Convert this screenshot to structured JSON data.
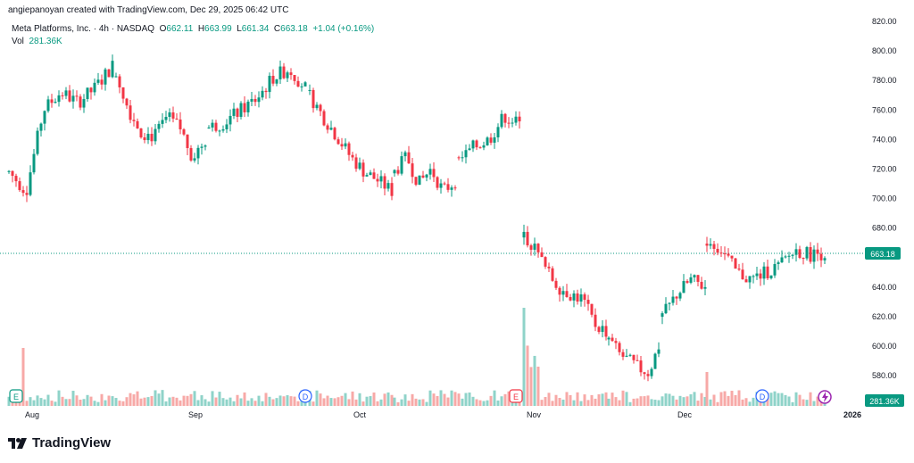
{
  "header": {
    "credit": "angiepanoyan created with TradingView.com, Dec 29, 2025 06:42 UTC"
  },
  "symbol": {
    "name": "Meta Platforms, Inc.",
    "interval": "4h",
    "exchange": "NASDAQ",
    "open_label": "O",
    "open": "662.11",
    "high_label": "H",
    "high": "663.99",
    "low_label": "L",
    "low": "661.34",
    "close_label": "C",
    "close": "663.18",
    "change": "+1.04 (+0.16%)"
  },
  "volume": {
    "label": "Vol",
    "value": "281.36K"
  },
  "price_axis": {
    "last_price": "663.18",
    "last_volume": "281.36K"
  },
  "footer": {
    "brand": "TradingView"
  },
  "colors": {
    "up": "#089981",
    "down": "#f23645",
    "vol_up": "#8fd3c9",
    "vol_down": "#f7a9a7",
    "badge": "#2962ff"
  },
  "events": [
    {
      "type": "E",
      "month": "Aug"
    },
    {
      "type": "D",
      "month": "Sep"
    },
    {
      "type": "E",
      "month": "Oct"
    },
    {
      "type": "D",
      "month": "Dec"
    }
  ],
  "chart_data": {
    "type": "candlestick",
    "ylim": [
      560,
      825
    ],
    "y_ticks": [
      820,
      800,
      780,
      760,
      740,
      720,
      700,
      680,
      640,
      620,
      600,
      580
    ],
    "x_ticks": [
      "Aug",
      "Sep",
      "Oct",
      "Nov",
      "Dec",
      "2026"
    ],
    "segments": [
      {
        "start": 10,
        "end": 128,
        "anchors": [
          718,
          705,
          760,
          772,
          765,
          775,
          790
        ]
      },
      {
        "start": 130,
        "end": 232,
        "anchors": [
          785,
          760,
          745,
          742,
          755,
          748,
          728,
          740
        ]
      },
      {
        "start": 234,
        "end": 345,
        "anchors": [
          748,
          752,
          760,
          768,
          782,
          788,
          775
        ]
      },
      {
        "start": 347,
        "end": 440,
        "anchors": [
          770,
          755,
          742,
          728,
          718,
          712,
          705
        ]
      },
      {
        "start": 442,
        "end": 512,
        "anchors": [
          718,
          728,
          710,
          720,
          705,
          712
        ]
      },
      {
        "start": 514,
        "end": 585,
        "anchors": [
          725,
          735,
          740,
          756,
          750
        ]
      },
      {
        "start": 587,
        "end": 680,
        "anchors": [
          676,
          665,
          650,
          640,
          635,
          632,
          615,
          610
        ]
      },
      {
        "start": 682,
        "end": 740,
        "anchors": [
          605,
          595,
          590,
          585,
          582,
          600
        ]
      },
      {
        "start": 742,
        "end": 790,
        "anchors": [
          620,
          635,
          645,
          640
        ]
      },
      {
        "start": 792,
        "end": 925,
        "anchors": [
          672,
          665,
          650,
          645,
          650,
          655,
          665,
          662,
          663.18
        ]
      }
    ]
  }
}
